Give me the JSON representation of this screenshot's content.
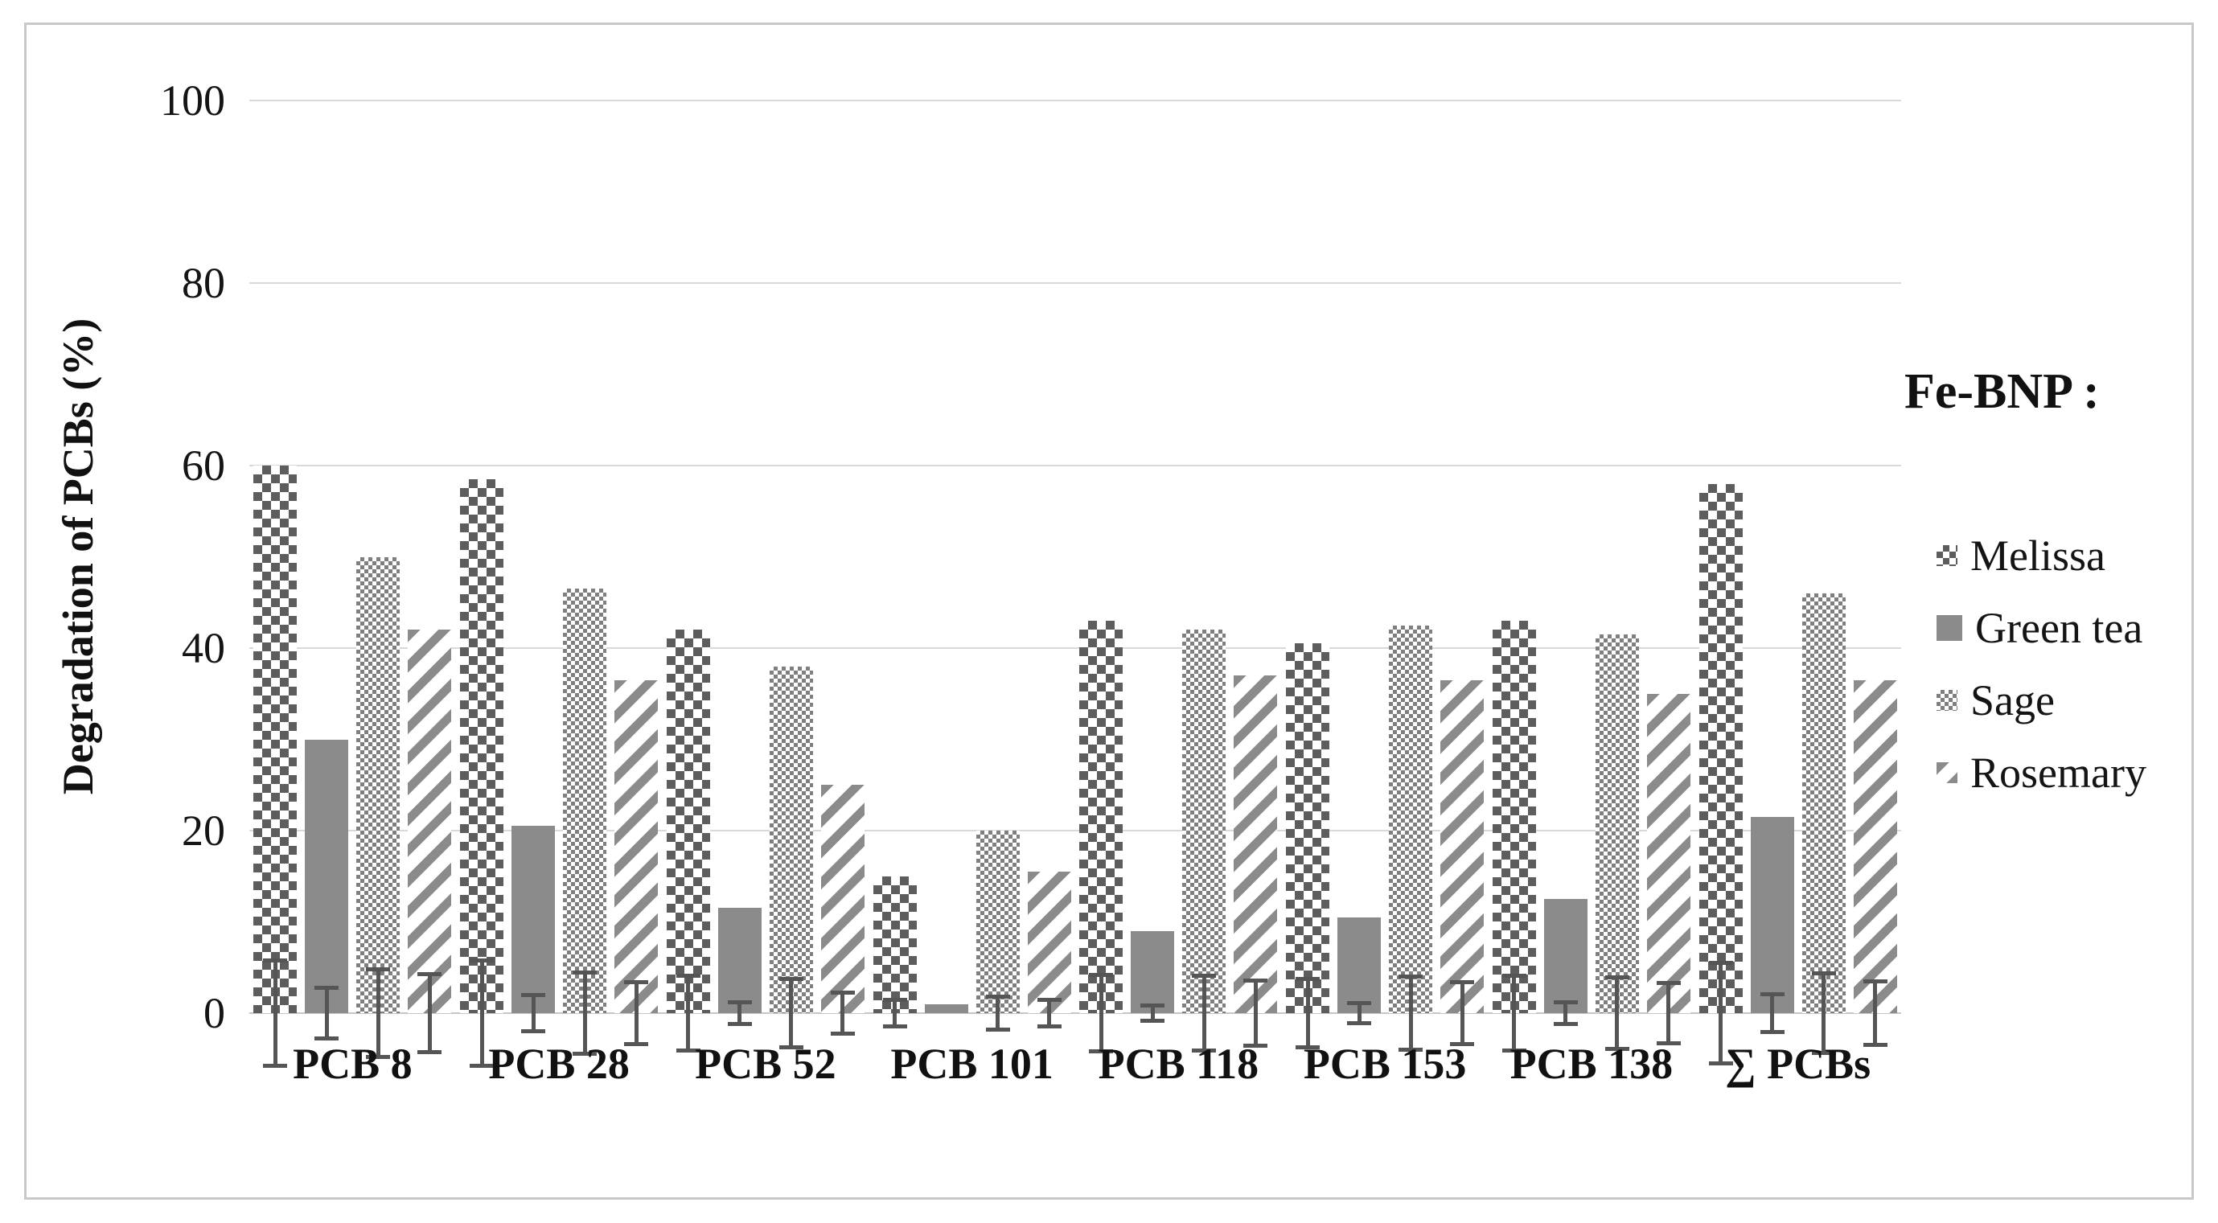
{
  "figure": {
    "background": "#ffffff",
    "frame_color": "#c9c9c9"
  },
  "chart_data": {
    "type": "bar",
    "title": "",
    "xlabel": "",
    "ylabel": "Degradation of PCBs (%)",
    "ylim": [
      0,
      100
    ],
    "yticks": [
      0,
      20,
      40,
      60,
      80,
      100
    ],
    "grid": true,
    "gridline_color": "#d9d9d9",
    "error_bar_color": "#555555",
    "legend_title": "Fe-BNP :",
    "legend_position": "right",
    "categories": [
      "PCB 8",
      "PCB 28",
      "PCB 52",
      "PCB 101",
      "PCB 118",
      "PCB 153",
      "PCB 138",
      "∑ PCBs"
    ],
    "series": [
      {
        "name": "Melissa",
        "pattern": "checker-lg",
        "color": "#5d5d5d",
        "values": [
          60,
          58.5,
          42,
          15,
          43,
          40.5,
          43,
          58
        ],
        "errors": [
          6,
          6,
          4.3,
          1.7,
          4.4,
          4,
          4.3,
          5.7
        ]
      },
      {
        "name": "Green tea",
        "pattern": "solid",
        "color": "#8b8b8b",
        "values": [
          30,
          20.5,
          11.5,
          1,
          9,
          10.5,
          12.5,
          21.5
        ],
        "errors": [
          3,
          2.2,
          1.4,
          0,
          1.1,
          1.3,
          1.4,
          2.3
        ]
      },
      {
        "name": "Sage",
        "pattern": "checker-sm",
        "color": "#7f7f7f",
        "values": [
          50,
          46.5,
          38,
          20,
          42,
          42.5,
          41.5,
          46
        ],
        "errors": [
          5,
          4.7,
          4,
          2,
          4.3,
          4.2,
          4.1,
          4.6
        ]
      },
      {
        "name": "Rosemary",
        "pattern": "stripes",
        "color": "#8b8b8b",
        "values": [
          42,
          36.5,
          25,
          15.5,
          37,
          36.5,
          35,
          36.5
        ],
        "errors": [
          4.5,
          3.6,
          2.5,
          1.7,
          3.8,
          3.6,
          3.5,
          3.7
        ]
      }
    ]
  }
}
